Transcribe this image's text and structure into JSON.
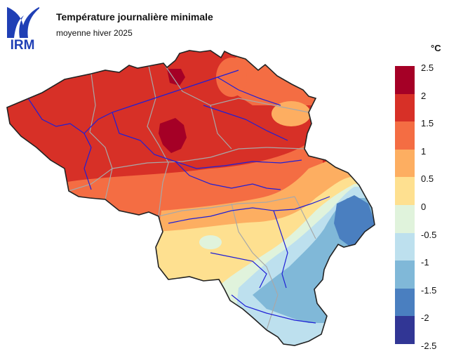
{
  "header": {
    "logo_text": "IRM",
    "title": "Température journalière minimale",
    "subtitle": "moyenne hiver 2025"
  },
  "legend": {
    "unit": "°C",
    "ticks": [
      "2.5",
      "2",
      "1.5",
      "1",
      "0.5",
      "0",
      "-0.5",
      "-1",
      "-1.5",
      "-2",
      "-2.5"
    ],
    "colors": [
      "#a50026",
      "#d73027",
      "#f46d43",
      "#fdae61",
      "#fee090",
      "#e0f3dc",
      "#bde0ee",
      "#80b8d8",
      "#4a7fc0",
      "#313695"
    ]
  },
  "map": {
    "region": "Belgium",
    "colors": {
      "border": "#222222",
      "provinces": "#a8a8a8",
      "rivers": "#1f1fd6"
    }
  }
}
